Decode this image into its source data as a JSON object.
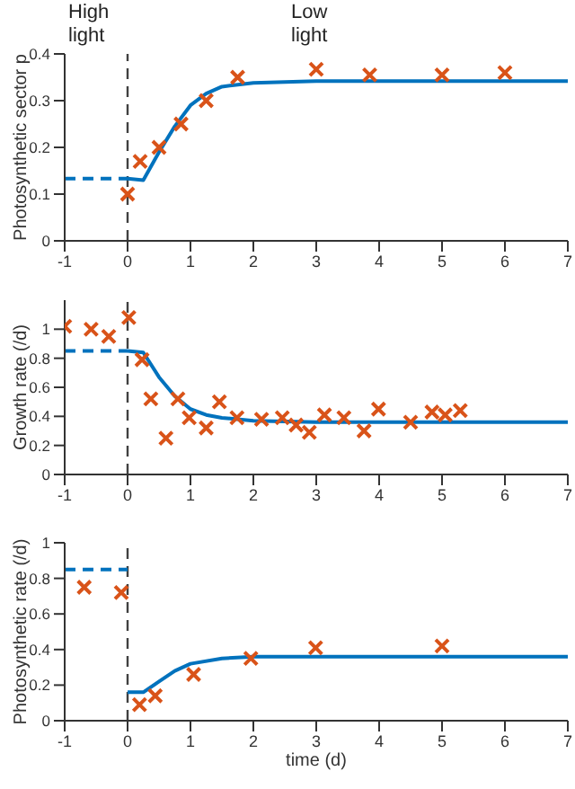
{
  "chart_data": [
    {
      "type": "line",
      "ylabel": "Photosynthetic sector p",
      "annotations": [
        "High light",
        "Low light"
      ],
      "xlim": [
        -1,
        7
      ],
      "xticks": [
        -1,
        0,
        1,
        2,
        3,
        4,
        5,
        6,
        7
      ],
      "ylim": [
        0,
        0.4
      ],
      "yticks": [
        0,
        0.1,
        0.2,
        0.3,
        0.4
      ],
      "grid": false,
      "legend": false,
      "ref_lines": [
        {
          "axis": "x",
          "value": 0,
          "color": "#404040",
          "line_style": "dashed"
        }
      ],
      "series": [
        {
          "type": "line",
          "color": "#0072bd",
          "line_style": "dashed",
          "marker": "none",
          "x": [
            -1,
            0
          ],
          "values": [
            0.133,
            0.133
          ]
        },
        {
          "type": "line",
          "color": "#0072bd",
          "line_style": "solid",
          "marker": "none",
          "x": [
            0,
            0.25,
            0.5,
            0.75,
            1,
            1.25,
            1.5,
            2,
            3,
            7
          ],
          "values": [
            0.133,
            0.13,
            0.19,
            0.245,
            0.29,
            0.315,
            0.33,
            0.338,
            0.342,
            0.342
          ]
        },
        {
          "type": "scatter",
          "color": "#d95319",
          "marker": "cross",
          "x": [
            0,
            0.2,
            0.5,
            0.85,
            1.25,
            1.75,
            3,
            3.85,
            5,
            6
          ],
          "values": [
            0.1,
            0.17,
            0.2,
            0.25,
            0.3,
            0.35,
            0.367,
            0.355,
            0.355,
            0.36
          ]
        }
      ]
    },
    {
      "type": "line",
      "ylabel": "Growth rate (/d)",
      "xlim": [
        -1,
        7
      ],
      "xticks": [
        -1,
        0,
        1,
        2,
        3,
        4,
        5,
        6,
        7
      ],
      "ylim": [
        0,
        1.2
      ],
      "yticks": [
        0,
        0.2,
        0.4,
        0.6,
        0.8,
        1
      ],
      "grid": false,
      "legend": false,
      "ref_lines": [
        {
          "axis": "x",
          "value": 0,
          "color": "#404040",
          "line_style": "dashed"
        }
      ],
      "series": [
        {
          "type": "line",
          "color": "#0072bd",
          "line_style": "dashed",
          "marker": "none",
          "x": [
            -1,
            0
          ],
          "values": [
            0.85,
            0.85
          ]
        },
        {
          "type": "line",
          "color": "#0072bd",
          "line_style": "solid",
          "marker": "none",
          "x": [
            0,
            0.25,
            0.5,
            0.75,
            1,
            1.25,
            1.5,
            2,
            3,
            7
          ],
          "values": [
            0.85,
            0.84,
            0.67,
            0.54,
            0.45,
            0.41,
            0.39,
            0.37,
            0.36,
            0.36
          ]
        },
        {
          "type": "scatter",
          "color": "#d95319",
          "marker": "cross",
          "x": [
            -1,
            -0.58,
            -0.3,
            0.02,
            0.23,
            0.37,
            0.61,
            0.8,
            0.98,
            1.25,
            1.46,
            1.74,
            2.13,
            2.46,
            2.68,
            2.89,
            3.13,
            3.44,
            3.76,
            3.99,
            4.5,
            4.84,
            5.05,
            5.29
          ],
          "values": [
            1.02,
            1,
            0.95,
            1.08,
            0.79,
            0.52,
            0.25,
            0.52,
            0.39,
            0.32,
            0.5,
            0.39,
            0.38,
            0.39,
            0.34,
            0.29,
            0.41,
            0.39,
            0.3,
            0.45,
            0.36,
            0.43,
            0.41,
            0.44
          ]
        }
      ]
    },
    {
      "type": "line",
      "xlabel": "time (d)",
      "ylabel": "Photosynthetic rate (/d)",
      "xlim": [
        -1,
        7
      ],
      "xticks": [
        -1,
        0,
        1,
        2,
        3,
        4,
        5,
        6,
        7
      ],
      "ylim": [
        0,
        1
      ],
      "yticks": [
        0,
        0.2,
        0.4,
        0.6,
        0.8,
        1
      ],
      "grid": false,
      "legend": false,
      "ref_lines": [
        {
          "axis": "x",
          "value": 0,
          "color": "#404040",
          "line_style": "dashed"
        }
      ],
      "series": [
        {
          "type": "line",
          "color": "#0072bd",
          "line_style": "dashed",
          "marker": "none",
          "x": [
            -1,
            0
          ],
          "values": [
            0.85,
            0.85
          ]
        },
        {
          "type": "line",
          "color": "#0072bd",
          "line_style": "solid",
          "marker": "none",
          "x": [
            0,
            0.25,
            0.5,
            0.75,
            1,
            1.5,
            2,
            7
          ],
          "values": [
            0.16,
            0.16,
            0.22,
            0.28,
            0.32,
            0.35,
            0.36,
            0.36
          ]
        },
        {
          "type": "scatter",
          "color": "#d95319",
          "marker": "cross",
          "x": [
            -0.69,
            -0.1,
            0.19,
            0.44,
            1.05,
            1.96,
            2.99,
            5
          ],
          "values": [
            0.75,
            0.72,
            0.09,
            0.14,
            0.26,
            0.35,
            0.41,
            0.42
          ]
        }
      ]
    }
  ]
}
